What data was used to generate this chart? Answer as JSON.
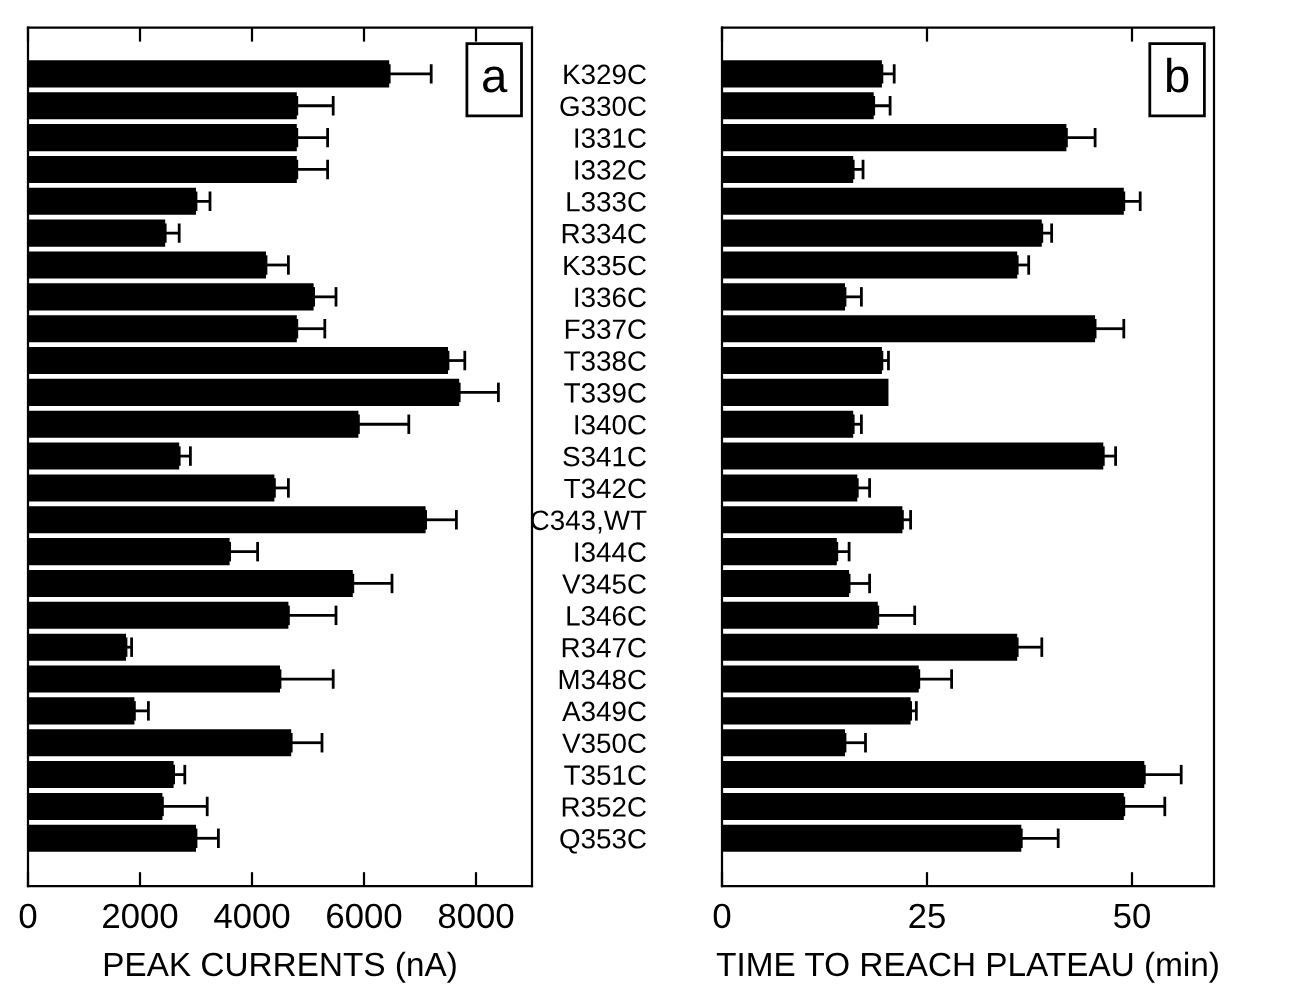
{
  "chart_data": [
    {
      "type": "bar",
      "orientation": "horizontal",
      "xlabel": "PEAK CURRENTS (nA)",
      "annotations": [
        "a"
      ],
      "tick_labels": "x",
      "xlim": [
        0,
        9000
      ],
      "xticks": [
        0,
        2000,
        4000,
        6000,
        8000
      ],
      "grid": false,
      "legend": false,
      "categories": [
        null,
        null,
        null,
        null,
        null,
        null,
        null,
        null,
        null,
        null,
        null,
        null,
        null,
        null,
        null,
        null,
        null,
        null,
        null,
        null,
        null,
        null,
        null,
        null,
        null
      ],
      "series": [
        {
          "color": "#000000",
          "values": [
            6450,
            4800,
            4800,
            4800,
            3000,
            2450,
            4250,
            5100,
            4800,
            7500,
            7700,
            5900,
            2700,
            4400,
            7100,
            3600,
            5800,
            4650,
            1750,
            4500,
            1900,
            4700,
            2600,
            2400,
            3000
          ],
          "errors": [
            750,
            650,
            550,
            550,
            250,
            250,
            400,
            400,
            500,
            300,
            700,
            900,
            200,
            250,
            550,
            500,
            700,
            850,
            100,
            950,
            250,
            550,
            200,
            800,
            400
          ]
        }
      ]
    },
    {
      "type": "bar",
      "orientation": "horizontal",
      "xlabel": "TIME TO REACH PLATEAU (min)",
      "annotations": [
        "b"
      ],
      "xlim": [
        0,
        60
      ],
      "xticks": [
        0,
        25,
        50
      ],
      "grid": false,
      "legend": false,
      "categories": [
        "K329C",
        "G330C",
        "I331C",
        "I332C",
        "L333C",
        "R334C",
        "K335C",
        "I336C",
        "F337C",
        "T338C",
        "T339C",
        "I340C",
        "S341C",
        "T342C",
        "C343,WT",
        "I344C",
        "V345C",
        "L346C",
        "R347C",
        "M348C",
        "A349C",
        "V350C",
        "T351C",
        "R352C",
        "Q353C"
      ],
      "series": [
        {
          "color": "#000000",
          "values": [
            19.5,
            18.5,
            42,
            16,
            49,
            39,
            36,
            15,
            45.5,
            19.5,
            20.3,
            16,
            46.5,
            16.5,
            22,
            14,
            15.5,
            19,
            36,
            24,
            23,
            15,
            51.5,
            49,
            36.5
          ],
          "errors": [
            1.5,
            2,
            3.5,
            1.2,
            2,
            1.2,
            1.4,
            2,
            3.5,
            0.8,
            null,
            1,
            1.5,
            1.5,
            1,
            1.5,
            2.5,
            4.5,
            3,
            4,
            0.7,
            2.5,
            4.5,
            5,
            4.5
          ]
        }
      ]
    }
  ]
}
